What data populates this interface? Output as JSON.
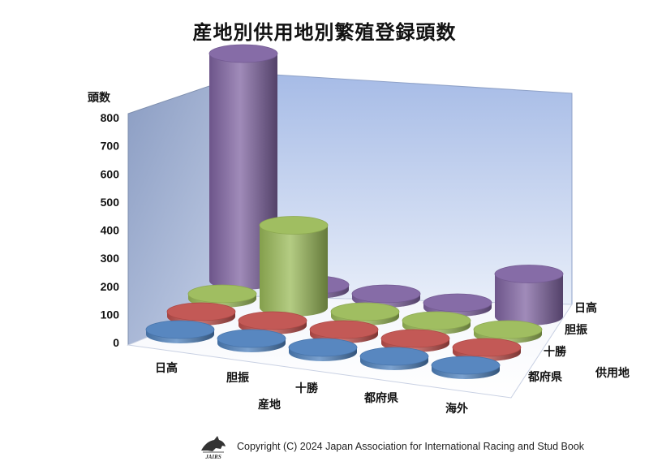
{
  "title": "産地別供用地別繁殖登録頭数",
  "chart_data": {
    "type": "bar",
    "style": "3d-cylinder",
    "title": "産地別供用地別繁殖登録頭数",
    "ylabel": "頭数",
    "xlabel": "産地",
    "zlabel": "供用地",
    "ylim": [
      0,
      800
    ],
    "yticks": [
      "0",
      "100",
      "200",
      "300",
      "400",
      "500",
      "600",
      "700",
      "800"
    ],
    "categories": [
      "日高",
      "胆振",
      "十勝",
      "都府県",
      "海外"
    ],
    "series": [
      {
        "name": "日高",
        "color": "#8064A2",
        "values": [
          800,
          0,
          0,
          0,
          150
        ]
      },
      {
        "name": "胆振",
        "color": "#9BBB59",
        "values": [
          0,
          290,
          0,
          0,
          15
        ]
      },
      {
        "name": "十勝",
        "color": "#C0504D",
        "values": [
          0,
          0,
          0,
          0,
          0
        ]
      },
      {
        "name": "都府県",
        "color": "#4F81BD",
        "values": [
          15,
          0,
          0,
          0,
          0
        ]
      }
    ],
    "grid": false,
    "legend": "none"
  },
  "footer": {
    "copyright": "Copyright (C) 2024 Japan Association for International Racing and Stud Book",
    "logo_text": "JAIRS"
  }
}
